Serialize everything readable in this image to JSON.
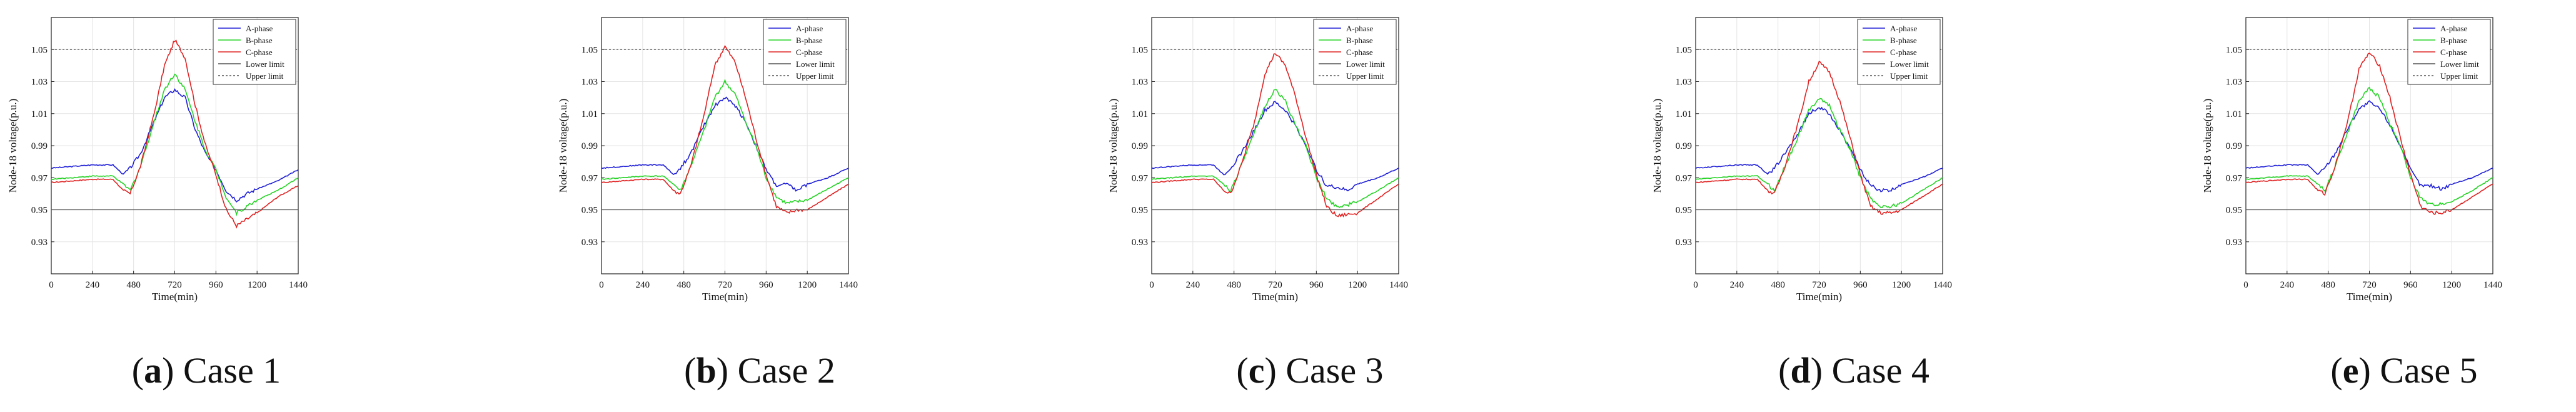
{
  "panel_common": {
    "xlabel": "Time(min)",
    "ylabel": "Node-18 voltage(p.u.)",
    "xlim": [
      0,
      1440
    ],
    "ylim": [
      0.91,
      1.07
    ],
    "xticks": [
      0,
      240,
      480,
      720,
      960,
      1200,
      1440
    ],
    "xtick_labels": [
      "0",
      "240",
      "480",
      "720",
      "960",
      "1200",
      "1440"
    ],
    "yticks": [
      0.93,
      0.95,
      0.97,
      0.99,
      1.01,
      1.03,
      1.05
    ],
    "ytick_labels": [
      "0.93",
      "0.95",
      "0.97",
      "0.99",
      "1.01",
      "1.03",
      "1.05"
    ],
    "legend_position": "top-right",
    "grid": true,
    "colors": {
      "A-phase": "#1f1fd6",
      "B-phase": "#27d427",
      "C-phase": "#e02222",
      "Lower limit": "#555555",
      "Upper limit": "#555555"
    }
  },
  "chart_data": [
    {
      "type": "line",
      "caption": {
        "letter": "a",
        "rest": ") Case 1",
        "open": "("
      },
      "x": [
        0,
        240,
        360,
        420,
        460,
        520,
        600,
        660,
        720,
        780,
        840,
        900,
        960,
        1020,
        1080,
        1140,
        1200,
        1320,
        1440
      ],
      "series": [
        {
          "name": "A-phase",
          "values": [
            0.976,
            0.978,
            0.978,
            0.972,
            0.976,
            0.985,
            1.005,
            1.02,
            1.025,
            1.02,
            1.0,
            0.985,
            0.975,
            0.962,
            0.956,
            0.96,
            0.963,
            0.968,
            0.975
          ]
        },
        {
          "name": "B-phase",
          "values": [
            0.969,
            0.971,
            0.971,
            0.966,
            0.962,
            0.977,
            1.005,
            1.025,
            1.035,
            1.025,
            1.005,
            0.987,
            0.975,
            0.958,
            0.948,
            0.952,
            0.956,
            0.962,
            0.97
          ]
        },
        {
          "name": "C-phase",
          "values": [
            0.967,
            0.969,
            0.969,
            0.962,
            0.96,
            0.977,
            1.01,
            1.04,
            1.056,
            1.045,
            1.015,
            0.99,
            0.972,
            0.95,
            0.94,
            0.944,
            0.948,
            0.958,
            0.965
          ]
        },
        {
          "name": "Lower limit",
          "values": [
            0.95,
            0.95,
            0.95,
            0.95,
            0.95,
            0.95,
            0.95,
            0.95,
            0.95,
            0.95,
            0.95,
            0.95,
            0.95,
            0.95,
            0.95,
            0.95,
            0.95,
            0.95,
            0.95
          ]
        },
        {
          "name": "Upper limit",
          "values": [
            1.05,
            1.05,
            1.05,
            1.05,
            1.05,
            1.05,
            1.05,
            1.05,
            1.05,
            1.05,
            1.05,
            1.05,
            1.05,
            1.05,
            1.05,
            1.05,
            1.05,
            1.05,
            1.05
          ]
        }
      ]
    },
    {
      "type": "line",
      "caption": {
        "letter": "b",
        "rest": ") Case 2",
        "open": "("
      },
      "x": [
        0,
        240,
        360,
        420,
        460,
        520,
        600,
        660,
        720,
        780,
        840,
        900,
        960,
        1020,
        1080,
        1140,
        1200,
        1320,
        1440
      ],
      "series": [
        {
          "name": "A-phase",
          "values": [
            0.976,
            0.978,
            0.978,
            0.972,
            0.976,
            0.985,
            1.003,
            1.015,
            1.02,
            1.015,
            1.005,
            0.99,
            0.975,
            0.965,
            0.966,
            0.962,
            0.966,
            0.97,
            0.976
          ]
        },
        {
          "name": "B-phase",
          "values": [
            0.969,
            0.971,
            0.971,
            0.966,
            0.962,
            0.977,
            1.0,
            1.02,
            1.03,
            1.022,
            1.005,
            0.99,
            0.97,
            0.958,
            0.954,
            0.955,
            0.956,
            0.963,
            0.97
          ]
        },
        {
          "name": "C-phase",
          "values": [
            0.967,
            0.969,
            0.969,
            0.962,
            0.96,
            0.977,
            1.01,
            1.04,
            1.052,
            1.042,
            1.02,
            0.995,
            0.972,
            0.952,
            0.948,
            0.95,
            0.95,
            0.958,
            0.966
          ]
        },
        {
          "name": "Lower limit",
          "values": [
            0.95,
            0.95,
            0.95,
            0.95,
            0.95,
            0.95,
            0.95,
            0.95,
            0.95,
            0.95,
            0.95,
            0.95,
            0.95,
            0.95,
            0.95,
            0.95,
            0.95,
            0.95,
            0.95
          ]
        },
        {
          "name": "Upper limit",
          "values": [
            1.05,
            1.05,
            1.05,
            1.05,
            1.05,
            1.05,
            1.05,
            1.05,
            1.05,
            1.05,
            1.05,
            1.05,
            1.05,
            1.05,
            1.05,
            1.05,
            1.05,
            1.05,
            1.05
          ]
        }
      ]
    },
    {
      "type": "line",
      "caption": {
        "letter": "c",
        "rest": ") Case 3",
        "open": "("
      },
      "x": [
        0,
        240,
        360,
        420,
        460,
        520,
        600,
        660,
        720,
        780,
        840,
        900,
        960,
        1020,
        1080,
        1140,
        1200,
        1320,
        1440
      ],
      "series": [
        {
          "name": "A-phase",
          "values": [
            0.976,
            0.978,
            0.978,
            0.972,
            0.976,
            0.985,
            1.0,
            1.012,
            1.017,
            1.012,
            1.002,
            0.99,
            0.975,
            0.965,
            0.964,
            0.962,
            0.966,
            0.97,
            0.976
          ]
        },
        {
          "name": "B-phase",
          "values": [
            0.969,
            0.971,
            0.971,
            0.966,
            0.962,
            0.977,
            0.998,
            1.015,
            1.025,
            1.018,
            1.002,
            0.99,
            0.97,
            0.957,
            0.952,
            0.953,
            0.955,
            0.962,
            0.97
          ]
        },
        {
          "name": "C-phase",
          "values": [
            0.967,
            0.969,
            0.969,
            0.962,
            0.96,
            0.977,
            1.005,
            1.035,
            1.048,
            1.04,
            1.02,
            0.995,
            0.972,
            0.952,
            0.946,
            0.947,
            0.948,
            0.957,
            0.966
          ]
        },
        {
          "name": "Lower limit",
          "values": [
            0.95,
            0.95,
            0.95,
            0.95,
            0.95,
            0.95,
            0.95,
            0.95,
            0.95,
            0.95,
            0.95,
            0.95,
            0.95,
            0.95,
            0.95,
            0.95,
            0.95,
            0.95,
            0.95
          ]
        },
        {
          "name": "Upper limit",
          "values": [
            1.05,
            1.05,
            1.05,
            1.05,
            1.05,
            1.05,
            1.05,
            1.05,
            1.05,
            1.05,
            1.05,
            1.05,
            1.05,
            1.05,
            1.05,
            1.05,
            1.05,
            1.05,
            1.05
          ]
        }
      ]
    },
    {
      "type": "line",
      "caption": {
        "letter": "d",
        "rest": ") Case 4",
        "open": "("
      },
      "x": [
        0,
        240,
        360,
        420,
        460,
        520,
        600,
        660,
        720,
        780,
        840,
        900,
        960,
        1020,
        1080,
        1140,
        1200,
        1320,
        1440
      ],
      "series": [
        {
          "name": "A-phase",
          "values": [
            0.976,
            0.978,
            0.978,
            0.972,
            0.976,
            0.985,
            0.998,
            1.01,
            1.014,
            1.01,
            1.0,
            0.988,
            0.975,
            0.965,
            0.962,
            0.962,
            0.966,
            0.97,
            0.976
          ]
        },
        {
          "name": "B-phase",
          "values": [
            0.969,
            0.971,
            0.971,
            0.966,
            0.962,
            0.977,
            0.996,
            1.012,
            1.02,
            1.015,
            1.0,
            0.988,
            0.97,
            0.957,
            0.952,
            0.952,
            0.954,
            0.962,
            0.97
          ]
        },
        {
          "name": "C-phase",
          "values": [
            0.967,
            0.969,
            0.969,
            0.962,
            0.96,
            0.977,
            1.005,
            1.03,
            1.042,
            1.036,
            1.018,
            0.995,
            0.972,
            0.952,
            0.948,
            0.948,
            0.95,
            0.958,
            0.966
          ]
        },
        {
          "name": "Lower limit",
          "values": [
            0.95,
            0.95,
            0.95,
            0.95,
            0.95,
            0.95,
            0.95,
            0.95,
            0.95,
            0.95,
            0.95,
            0.95,
            0.95,
            0.95,
            0.95,
            0.95,
            0.95,
            0.95,
            0.95
          ]
        },
        {
          "name": "Upper limit",
          "values": [
            1.05,
            1.05,
            1.05,
            1.05,
            1.05,
            1.05,
            1.05,
            1.05,
            1.05,
            1.05,
            1.05,
            1.05,
            1.05,
            1.05,
            1.05,
            1.05,
            1.05,
            1.05,
            1.05
          ]
        }
      ]
    },
    {
      "type": "line",
      "caption": {
        "letter": "e",
        "rest": ") Case 5",
        "open": "("
      },
      "x": [
        0,
        240,
        360,
        420,
        460,
        520,
        600,
        660,
        720,
        780,
        840,
        900,
        960,
        1020,
        1080,
        1140,
        1200,
        1320,
        1440
      ],
      "series": [
        {
          "name": "A-phase",
          "values": [
            0.976,
            0.978,
            0.978,
            0.972,
            0.976,
            0.985,
            1.002,
            1.013,
            1.017,
            1.013,
            1.003,
            0.99,
            0.975,
            0.965,
            0.965,
            0.963,
            0.966,
            0.97,
            0.976
          ]
        },
        {
          "name": "B-phase",
          "values": [
            0.969,
            0.971,
            0.971,
            0.966,
            0.962,
            0.977,
            1.0,
            1.018,
            1.026,
            1.02,
            1.004,
            0.99,
            0.97,
            0.957,
            0.953,
            0.954,
            0.955,
            0.962,
            0.97
          ]
        },
        {
          "name": "C-phase",
          "values": [
            0.967,
            0.969,
            0.969,
            0.962,
            0.96,
            0.977,
            1.008,
            1.038,
            1.048,
            1.04,
            1.02,
            0.995,
            0.972,
            0.952,
            0.948,
            0.948,
            0.95,
            0.958,
            0.966
          ]
        },
        {
          "name": "Lower limit",
          "values": [
            0.95,
            0.95,
            0.95,
            0.95,
            0.95,
            0.95,
            0.95,
            0.95,
            0.95,
            0.95,
            0.95,
            0.95,
            0.95,
            0.95,
            0.95,
            0.95,
            0.95,
            0.95,
            0.95
          ]
        },
        {
          "name": "Upper limit",
          "values": [
            1.05,
            1.05,
            1.05,
            1.05,
            1.05,
            1.05,
            1.05,
            1.05,
            1.05,
            1.05,
            1.05,
            1.05,
            1.05,
            1.05,
            1.05,
            1.05,
            1.05,
            1.05,
            1.05
          ]
        }
      ]
    }
  ]
}
